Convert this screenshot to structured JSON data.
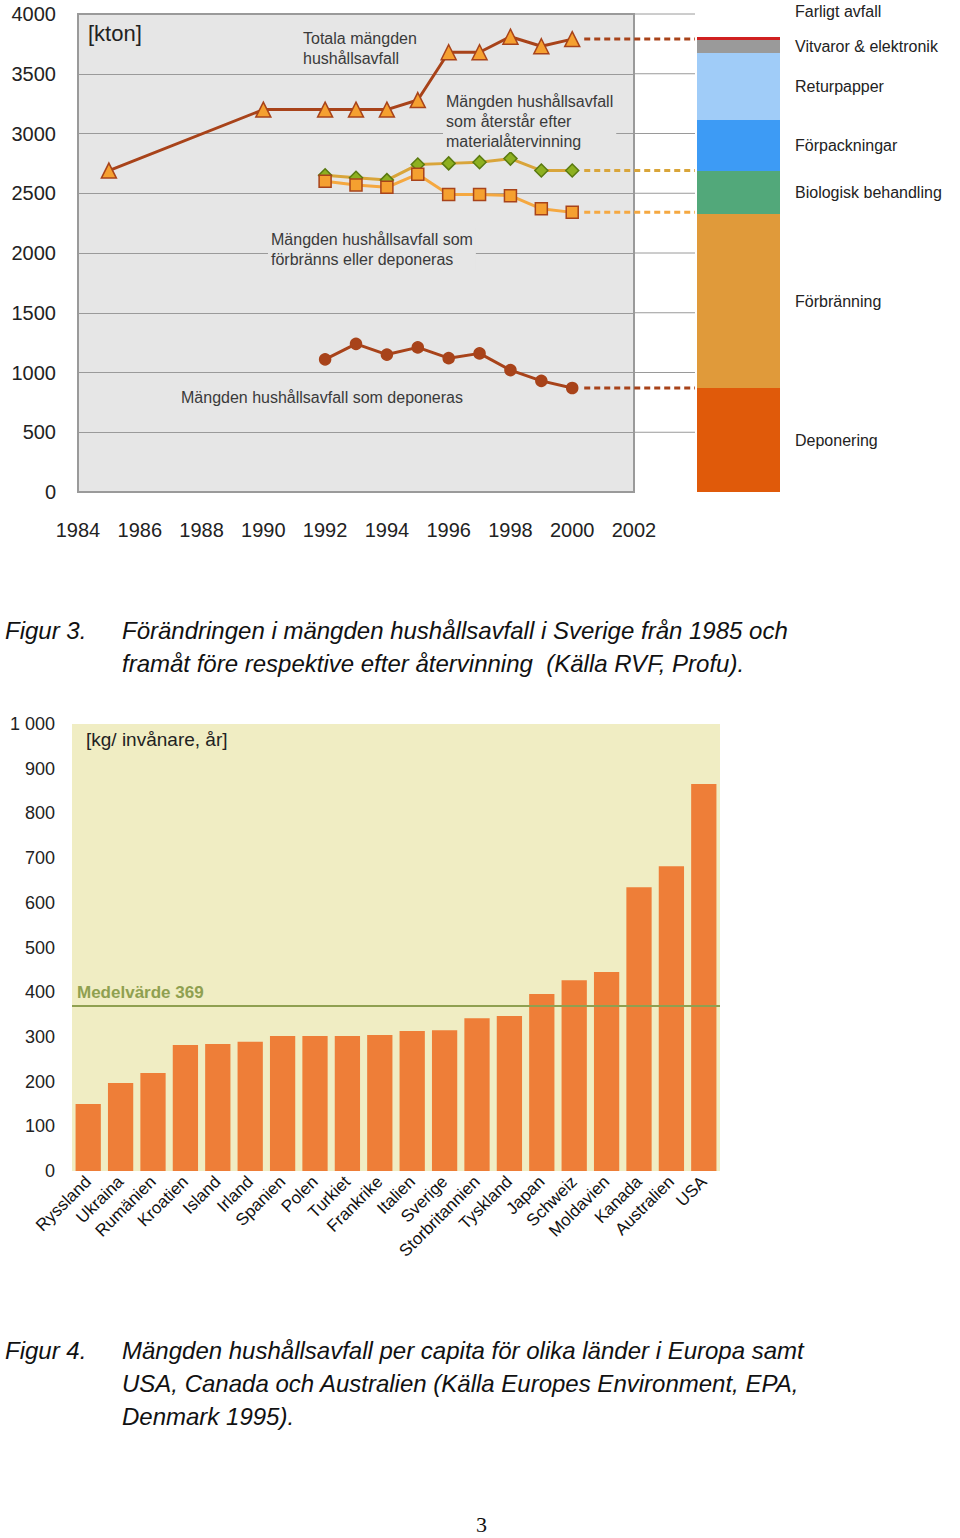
{
  "page": "3",
  "chart_data": [
    {
      "type": "line",
      "caption_label": "Figur 3.",
      "caption": "Förändringen i mängden hushållsavfall i Sverige från 1985 och\nframåt före respektive efter återvinning  (Källa RVF, Profu).",
      "y_label": "[kton]",
      "x": [
        1985,
        1990,
        1992,
        1993,
        1994,
        1995,
        1996,
        1997,
        1998,
        1999,
        2000
      ],
      "xlim": [
        1984,
        2002
      ],
      "xticks": [
        1984,
        1986,
        1988,
        1990,
        1992,
        1994,
        1996,
        1998,
        2000,
        2002
      ],
      "ylim": [
        0,
        4000
      ],
      "yticks": [
        0,
        500,
        1000,
        1500,
        2000,
        2500,
        3000,
        3500,
        4000
      ],
      "grid": true,
      "series": [
        {
          "name": "Totala mängden\nhushållsavfall",
          "color": "#a8431a",
          "marker": "triangle",
          "values": [
            2690,
            3200,
            3200,
            3200,
            3200,
            3280,
            3680,
            3680,
            3810,
            3730,
            3790
          ]
        },
        {
          "name": "Mängden hushållsavfall\nsom återstår efter\nmaterialåtervinning",
          "color": "#d9a53a",
          "marker": "diamond",
          "values": [
            null,
            null,
            2650,
            2630,
            2610,
            2740,
            2750,
            2760,
            2790,
            2690,
            2690
          ]
        },
        {
          "name": "Mängden hushållsavfall som\nförbränns eller deponeras",
          "color": "#f5a840",
          "marker": "rect",
          "values": [
            null,
            null,
            2600,
            2570,
            2550,
            2660,
            2490,
            2490,
            2480,
            2370,
            2340
          ]
        },
        {
          "name": "Mängden hushållsavfall som deponeras",
          "color": "#a8431a",
          "marker": "circle",
          "values": [
            null,
            null,
            1110,
            1240,
            1150,
            1210,
            1120,
            1160,
            1020,
            930,
            870
          ]
        }
      ]
    },
    {
      "type": "bar",
      "stacked": true,
      "categories": [
        null
      ],
      "ylim": [
        0,
        4000
      ],
      "tick_labels": false,
      "series": [
        {
          "name": "Deponering",
          "color": "#e05a0a",
          "values": [
            870
          ]
        },
        {
          "name": "Förbränning",
          "color": "#e09a3a",
          "values": [
            1456
          ]
        },
        {
          "name": "Biologisk behandling",
          "color": "#52a87a",
          "values": [
            360
          ]
        },
        {
          "name": "Förpackningar",
          "color": "#3d9bf5",
          "values": [
            427
          ]
        },
        {
          "name": "Returpapper",
          "color": "#a0ccf8",
          "values": [
            561
          ]
        },
        {
          "name": "Vitvaror & elektronik",
          "color": "#9a9a9a",
          "values": [
            108
          ]
        },
        {
          "name": "Farligt avfall",
          "color": "#d02020",
          "values": [
            26
          ]
        }
      ]
    },
    {
      "type": "bar",
      "caption_label": "Figur 4.",
      "caption": "Mängden hushållsavfall per capita för olika länder i Europa samt\nUSA, Canada och Australien (Källa Europes Environment, EPA,\nDenmark 1995).",
      "y_label": "[kg/ invånare, år]",
      "categories": [
        "Ryssland",
        "Ukraina",
        "Rumänien",
        "Kroatien",
        "Island",
        "Irland",
        "Spanien",
        "Polen",
        "Turkiet",
        "Frankrike",
        "Italien",
        "Sverige",
        "Storbritannien",
        "Tyskland",
        "Japan",
        "Schweiz",
        "Moldavien",
        "Kanada",
        "Australien",
        "USA"
      ],
      "values": [
        150,
        197,
        219,
        282,
        284,
        289,
        302,
        302,
        302,
        304,
        313,
        315,
        342,
        347,
        396,
        427,
        445,
        635,
        682,
        866
      ],
      "color": "#ee7e38",
      "ylim": [
        0,
        1000
      ],
      "yticks": [
        0,
        100,
        200,
        300,
        400,
        500,
        600,
        700,
        800,
        900,
        {
          "value": 1000,
          "label": "1 000"
        }
      ],
      "mean": {
        "label": "Medelvärde 369",
        "value": 369,
        "color": "#8fa050"
      }
    }
  ]
}
